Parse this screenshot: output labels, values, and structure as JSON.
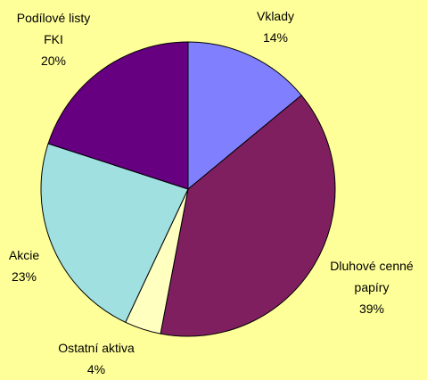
{
  "chart_data": {
    "type": "pie",
    "categories": [
      "Vklady",
      "Dluhové cenné papíry",
      "Ostatní aktiva",
      "Akcie",
      "Podílové listy FKI"
    ],
    "values": [
      14,
      39,
      4,
      23,
      20
    ],
    "value_labels": [
      "14%",
      "39%",
      "4%",
      "23%",
      "20%"
    ],
    "colors": [
      "#8080ff",
      "#801f60",
      "#ffffc0",
      "#a0e0e0",
      "#660080"
    ]
  }
}
